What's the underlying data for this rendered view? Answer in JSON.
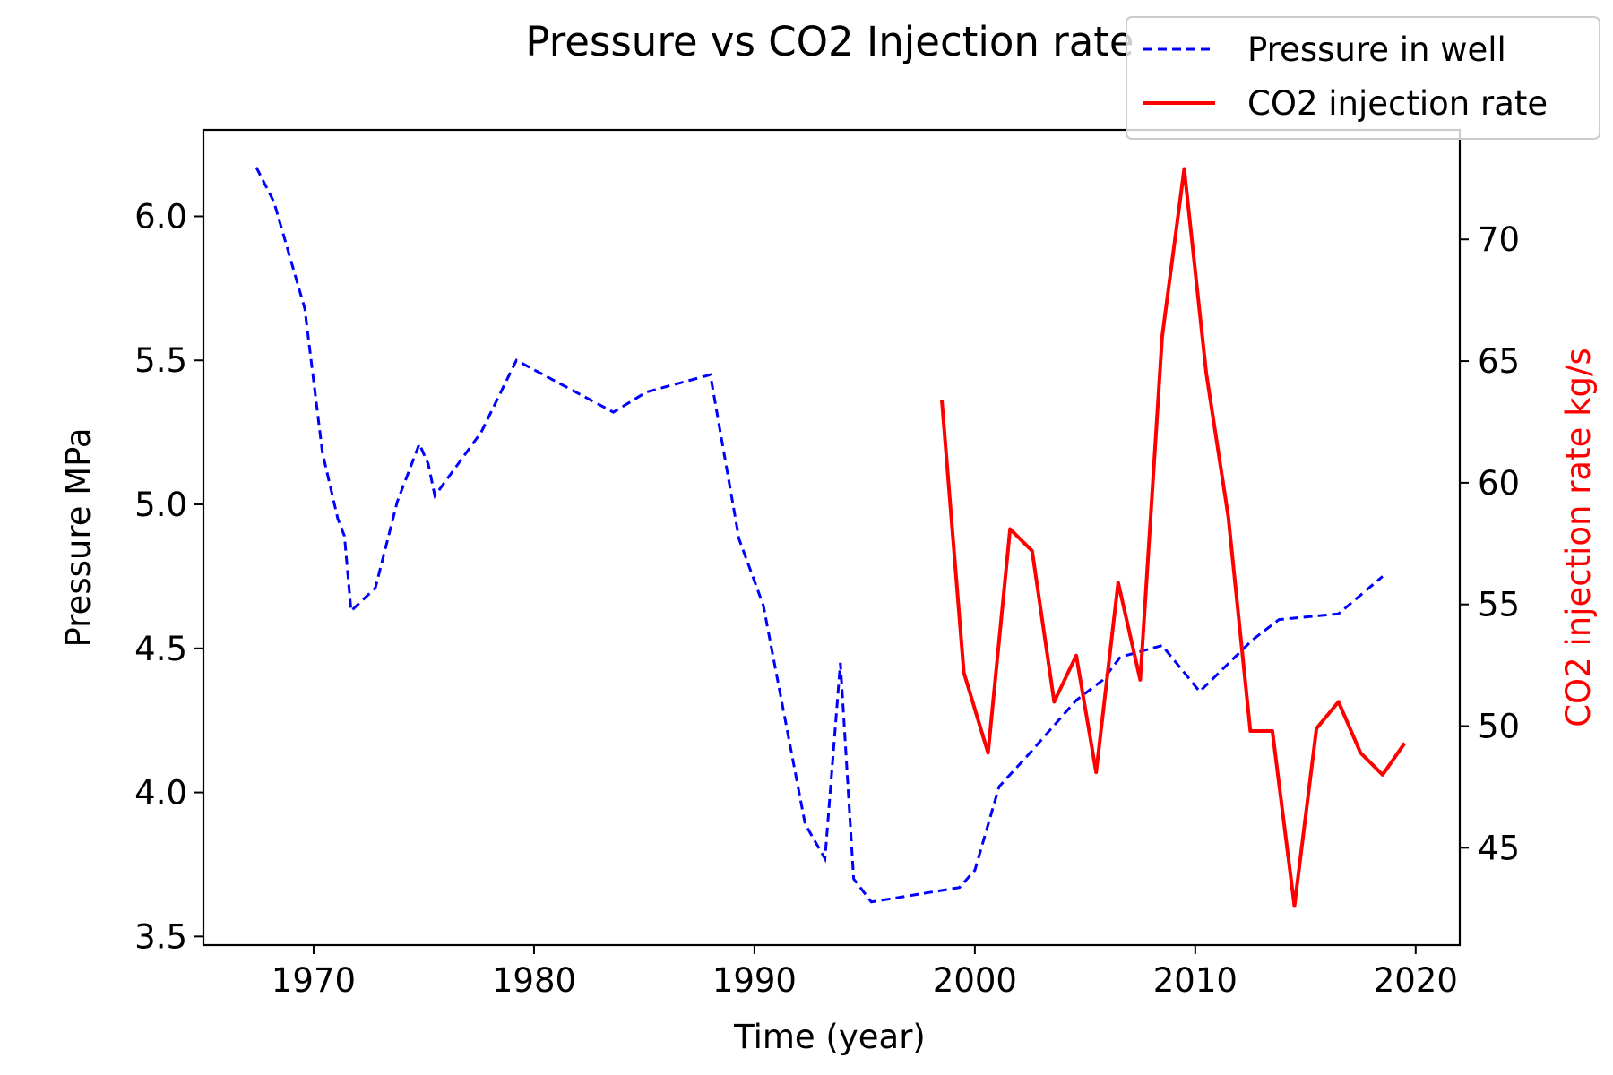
{
  "chart_data": {
    "type": "line",
    "title": "Pressure vs CO2 Injection rate",
    "xlabel": "Time (year)",
    "ylabel": "Pressure MPa",
    "y2label": "CO2 injection rate kg/s",
    "xlim": [
      1965,
      2022
    ],
    "ylim": [
      3.47,
      6.3
    ],
    "y2lim": [
      41,
      74.5
    ],
    "x_ticks": [
      1970,
      1980,
      1990,
      2000,
      2010,
      2020
    ],
    "y_ticks": [
      3.5,
      4.0,
      4.5,
      5.0,
      5.5,
      6.0
    ],
    "y2_ticks": [
      45,
      50,
      55,
      60,
      65,
      70
    ],
    "grid": false,
    "legend_position": "upper-right (outside)",
    "colors": {
      "pressure": "#0000ff",
      "co2": "#ff0000",
      "y2label": "#ff0000"
    },
    "series": [
      {
        "name": "Pressure in well",
        "axis": "left",
        "style": "dashed",
        "x": [
          1967.4,
          1968.2,
          1969.6,
          1970.4,
          1971.1,
          1971.4,
          1971.7,
          1972.8,
          1973.8,
          1974.8,
          1975.2,
          1975.5,
          1977.6,
          1979.2,
          1983.6,
          1985.1,
          1988.0,
          1989.3,
          1990.4,
          1992.3,
          1993.2,
          1993.9,
          1994.5,
          1995.3,
          1999.3,
          2000.0,
          2001.1,
          2002.3,
          2004.6,
          2005.8,
          2006.6,
          2008.5,
          2010.2,
          2012.6,
          2013.8,
          2016.5,
          2018.5
        ],
        "y": [
          6.17,
          6.05,
          5.68,
          5.18,
          4.95,
          4.89,
          4.63,
          4.71,
          5.01,
          5.21,
          5.14,
          5.03,
          5.25,
          5.5,
          5.32,
          5.39,
          5.45,
          4.88,
          4.65,
          3.89,
          3.77,
          4.45,
          3.7,
          3.62,
          3.67,
          3.73,
          4.02,
          4.12,
          4.32,
          4.39,
          4.47,
          4.51,
          4.35,
          4.53,
          4.6,
          4.62,
          4.75
        ]
      },
      {
        "name": "CO2 injection rate",
        "axis": "right",
        "style": "solid",
        "x": [
          1998.5,
          1999.5,
          2000.6,
          2001.6,
          2002.6,
          2003.6,
          2004.6,
          2005.5,
          2006.5,
          2007.5,
          2008.5,
          2009.5,
          2010.5,
          2011.5,
          2012.5,
          2013.5,
          2014.5,
          2015.5,
          2016.5,
          2017.5,
          2018.5,
          2019.5
        ],
        "y": [
          63.4,
          52.2,
          48.9,
          58.1,
          57.2,
          51.0,
          52.9,
          48.1,
          55.9,
          51.9,
          66.0,
          72.9,
          64.5,
          58.6,
          49.8,
          49.8,
          42.6,
          49.9,
          51.0,
          48.9,
          48.0,
          49.3
        ]
      }
    ]
  }
}
